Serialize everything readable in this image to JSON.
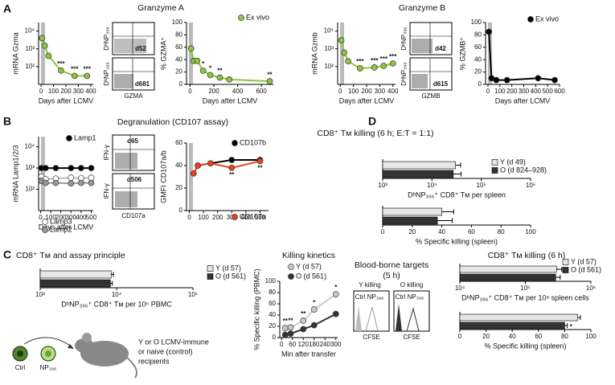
{
  "panel_labels": [
    "A",
    "B",
    "C",
    "D"
  ],
  "headings": {
    "granzyme_a": "Granzyme A",
    "granzyme_b": "Granzyme B",
    "degranulation": "Degranulation (CD107 assay)"
  },
  "flow": {
    "gzma": {
      "y_label": "DᵇNP₃₉₆",
      "x_label": "GZMA",
      "top": "d52",
      "bottom": "d681"
    },
    "gzmb": {
      "y_label": "DᵇNP₃₉₆",
      "x_label": "GZMB",
      "top": "d42",
      "bottom": "d615"
    },
    "cd107": {
      "y_label": "IFN-γ",
      "x_label": "CD107a",
      "top": "d65",
      "bottom": "d506"
    }
  },
  "blood": {
    "title": [
      "Blood-borne targets",
      "(5 h)"
    ],
    "y_killing": "Y killing",
    "o_killing": "O killing",
    "ctrl": "Ctrl",
    "np": "NP₃₉₆",
    "x_label": "CFSE"
  },
  "diagram": {
    "ctrl": "Ctrl",
    "np": "NP₃₉₆",
    "recipients": [
      "Y or O LCMV-immune",
      "or naive (control)",
      "recipients"
    ]
  },
  "chart_data": [
    {
      "type": "line",
      "y_label": "mRNA Gzma",
      "x_label": "Days after LCMV",
      "log_y": true,
      "xlim": [
        -20,
        420
      ],
      "xticks": [
        0,
        100,
        200,
        300,
        400
      ],
      "ylim": [
        10,
        30000
      ],
      "yticks": [
        {
          "value": 100,
          "label": "10²"
        },
        {
          "value": 1000,
          "label": "10³"
        },
        {
          "value": 10000,
          "label": "10⁴"
        }
      ],
      "series": [
        {
          "color": "#8dc63f",
          "line_color": "#8dc63f",
          "x": [
            8,
            30,
            60,
            160,
            270,
            370
          ],
          "values": [
            4000,
            1500,
            400,
            60,
            30,
            30
          ]
        }
      ],
      "annotations": [
        {
          "text": "***",
          "x": 160
        },
        {
          "text": "***",
          "x": 270
        },
        {
          "text": "***",
          "x": 370
        }
      ]
    },
    {
      "type": "line",
      "y_label": "% GZMA⁺",
      "x_label": "Days after LCMV",
      "xlim": [
        -30,
        700
      ],
      "xticks": [
        0,
        200,
        400,
        600
      ],
      "ylim": [
        0,
        100
      ],
      "yticks": [
        0,
        20,
        40,
        60,
        80,
        100
      ],
      "series": [
        {
          "name": "Ex vivo",
          "color": "#8dc63f",
          "line_color": "#8dc63f",
          "x": [
            8,
            30,
            60,
            110,
            170,
            250,
            330,
            670
          ],
          "values": [
            58,
            38,
            38,
            22,
            15,
            11,
            8,
            5
          ]
        }
      ],
      "annotations": [
        {
          "text": "*",
          "x": 110
        },
        {
          "text": "*",
          "x": 170
        },
        {
          "text": "**",
          "x": 250
        },
        {
          "text": "**",
          "x": 670
        }
      ]
    },
    {
      "type": "line",
      "y_label": "mRNA Gzmb",
      "x_label": "Days after LCMV",
      "log_y": true,
      "xlim": [
        -20,
        420
      ],
      "xticks": [
        0,
        100,
        200,
        300,
        400
      ],
      "ylim": [
        10,
        30000
      ],
      "yticks": [
        {
          "value": 100,
          "label": "10²"
        },
        {
          "value": 1000,
          "label": "10³"
        },
        {
          "value": 10000,
          "label": "10⁴"
        }
      ],
      "series": [
        {
          "color": "#8dc63f",
          "line_color": "#8dc63f",
          "x": [
            8,
            30,
            60,
            150,
            260,
            330,
            400
          ],
          "values": [
            3000,
            600,
            200,
            80,
            90,
            110,
            150
          ]
        }
      ],
      "annotations": [
        {
          "text": "***",
          "x": 150
        },
        {
          "text": "***",
          "x": 260
        },
        {
          "text": "***",
          "x": 330
        },
        {
          "text": "***",
          "x": 400
        }
      ]
    },
    {
      "type": "line",
      "y_label": "% GZMB⁺",
      "x_label": "Days after LCMV",
      "xlim": [
        -20,
        600
      ],
      "xticks": [
        0,
        100,
        200,
        300,
        400,
        500,
        600
      ],
      "ylim": [
        0,
        100
      ],
      "yticks": [
        0,
        20,
        40,
        60,
        80,
        100
      ],
      "series": [
        {
          "name": "Ex vivo",
          "color": "#000000",
          "line_color": "#000000",
          "x": [
            8,
            30,
            70,
            160,
            420,
            560
          ],
          "values": [
            85,
            10,
            7,
            7,
            10,
            7
          ]
        }
      ]
    },
    {
      "type": "line",
      "y_label": "mRNA Lamp1/2/3",
      "x_label": "Days after LCMV",
      "log_y": true,
      "xlim": [
        -20,
        520
      ],
      "xticks": [
        0,
        100,
        200,
        300,
        400,
        500
      ],
      "ylim": [
        10,
        30000
      ],
      "yticks": [
        {
          "value": 100,
          "label": "10²"
        },
        {
          "value": 1000,
          "label": "10³"
        },
        {
          "value": 10000,
          "label": "10⁴"
        }
      ],
      "series": [
        {
          "name": "Lamp1",
          "color": "#000000",
          "line_color": "#000000",
          "x": [
            8,
            50,
            150,
            300,
            400,
            500
          ],
          "values": [
            1000,
            1000,
            1000,
            1000,
            1000,
            1000
          ]
        },
        {
          "name": "Lamp3",
          "color": "#ffffff",
          "line_color": "#bbbbbb",
          "x": [
            8,
            50,
            150,
            300,
            400,
            500
          ],
          "values": [
            400,
            300,
            320,
            350,
            330,
            350
          ]
        },
        {
          "name": "Lamp2",
          "color": "#999999",
          "line_color": "#999999",
          "x": [
            8,
            50,
            150,
            300,
            400,
            500
          ],
          "values": [
            250,
            200,
            200,
            190,
            200,
            200
          ]
        }
      ]
    },
    {
      "type": "line",
      "y_label": "GMFI CD107a/b",
      "xlim": [
        -20,
        560
      ],
      "xticks": [
        0,
        100,
        200,
        300,
        400,
        500
      ],
      "ylim": [
        0,
        60
      ],
      "yticks": [
        0,
        20,
        40,
        60
      ],
      "series": [
        {
          "name": "CD107b",
          "color": "#000000",
          "line_color": "#000000",
          "x": [
            30,
            60,
            150,
            300,
            500
          ],
          "values": [
            33,
            40,
            42,
            45,
            45
          ]
        },
        {
          "name": "CD107a",
          "color": "#e8431d",
          "line_color": "#e8431d",
          "x": [
            30,
            60,
            150,
            300,
            500
          ],
          "values": [
            33,
            40,
            42,
            38,
            44
          ]
        }
      ],
      "annotations": [
        {
          "text": "**",
          "x": 300,
          "position": "below"
        },
        {
          "text": "**",
          "x": 500,
          "position": "below"
        }
      ]
    },
    {
      "type": "bar",
      "title": "CD8⁺ Tᴍ killing (6 h; E:T = 1:1)",
      "x_label": "DᵇNP₃₉₆⁺ CD8⁺ Tᴍ per spleen",
      "log_x": true,
      "xlim": [
        1000,
        1000000
      ],
      "xticks": [
        {
          "value": 1000,
          "label": "10³"
        },
        {
          "value": 10000,
          "label": "10⁴"
        },
        {
          "value": 100000,
          "label": "10⁵"
        },
        {
          "value": 1000000,
          "label": "10⁶"
        }
      ],
      "series": [
        {
          "name": "Y (d 49)",
          "color": "#e6e6e6",
          "values": [
            30000
          ],
          "errors": [
            8000
          ]
        },
        {
          "name": "O (d 824–928)",
          "color": "#333333",
          "values": [
            27000
          ],
          "errors": [
            12000
          ]
        }
      ]
    },
    {
      "type": "bar",
      "x_label": "% Specific killing (spleen)",
      "xlim": [
        0,
        100
      ],
      "xticks": [
        0,
        20,
        40,
        60,
        80,
        100
      ],
      "series": [
        {
          "color": "#e6e6e6",
          "values": [
            40
          ],
          "errors": [
            8
          ]
        },
        {
          "color": "#333333",
          "values": [
            37
          ],
          "errors": [
            10
          ]
        }
      ]
    },
    {
      "type": "bar",
      "title": "CD8⁺ Tᴍ and assay principle",
      "x_label": "DᵇNP₃₉₆⁺ CD8⁺ Tᴍ per 10⁶ PBMC",
      "log_x": true,
      "xlim": [
        1000,
        100000
      ],
      "xticks": [
        {
          "value": 1000,
          "label": "10³"
        },
        {
          "value": 10000,
          "label": "10⁴"
        },
        {
          "value": 100000,
          "label": "10⁵"
        }
      ],
      "series": [
        {
          "name": "Y (d 57)",
          "color": "#e6e6e6",
          "values": [
            8500
          ],
          "errors": [
            600
          ]
        },
        {
          "name": "O (d 561)",
          "color": "#333333",
          "values": [
            8300
          ],
          "errors": [
            500
          ]
        }
      ]
    },
    {
      "type": "line",
      "title": "Killing kinetics",
      "y_label": "% Specific killing (PBMC)",
      "x_label": "Min after transfer",
      "xlim": [
        -10,
        310
      ],
      "xticks": [
        0,
        60,
        120,
        180,
        240,
        300
      ],
      "ylim": [
        0,
        100
      ],
      "yticks": [
        0,
        20,
        40,
        60,
        80,
        100
      ],
      "series": [
        {
          "name": "Y (d 57)",
          "color": "#cccccc",
          "line_color": "#cccccc",
          "x": [
            20,
            50,
            120,
            180,
            300
          ],
          "values": [
            17,
            18,
            30,
            50,
            77
          ]
        },
        {
          "name": "O (d 561)",
          "color": "#333333",
          "line_color": "#333333",
          "x": [
            20,
            50,
            120,
            180,
            300
          ],
          "values": [
            5,
            7,
            15,
            22,
            42
          ]
        }
      ],
      "annotations": [
        {
          "text": "**",
          "x": 20
        },
        {
          "text": "**",
          "x": 50
        },
        {
          "text": "**",
          "x": 120
        },
        {
          "text": "*",
          "x": 180
        },
        {
          "text": "*",
          "x": 300
        }
      ]
    },
    {
      "type": "bar",
      "title": "CD8⁺ Tᴍ killing (6 h)",
      "x_label": "DᵇNP₃₉₆⁺ CD8⁺ Tᴍ per 10⁸ spleen cells",
      "log_x": true,
      "xlim": [
        10000,
        1000000
      ],
      "xticks": [
        {
          "value": 10000,
          "label": "10⁴"
        },
        {
          "value": 100000,
          "label": "10⁵"
        },
        {
          "value": 1000000,
          "label": "10⁶"
        }
      ],
      "series": [
        {
          "name": "Y (d 57)",
          "color": "#e6e6e6",
          "values": [
            300000
          ],
          "errors": [
            60000
          ]
        },
        {
          "name": "O (d 561)",
          "color": "#333333",
          "values": [
            290000
          ],
          "errors": [
            50000
          ]
        }
      ]
    },
    {
      "type": "bar",
      "x_label": "% Specific killing (spleen)",
      "xlim": [
        0,
        100
      ],
      "xticks": [
        0,
        20,
        40,
        60,
        80,
        100
      ],
      "series": [
        {
          "color": "#e6e6e6",
          "values": [
            90
          ],
          "errors": [
            2
          ]
        },
        {
          "color": "#333333",
          "values": [
            80
          ],
          "errors": [
            2
          ]
        }
      ],
      "annotations": [
        {
          "text": "*"
        }
      ]
    }
  ]
}
